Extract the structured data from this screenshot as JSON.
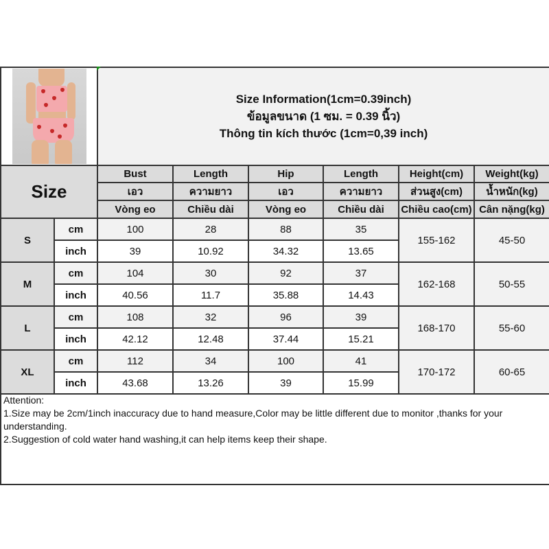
{
  "title_lines": [
    "Size Information(1cm=0.39inch)",
    "ข้อมูลขนาด (1 ซม. = 0.39 นิ้ว)",
    "Thông tin kích thước (1cm=0,39 inch)"
  ],
  "size_label": "Size",
  "headers": [
    [
      "Bust",
      "Length",
      "Hip",
      "Length",
      "Height(cm)",
      "Weight(kg)"
    ],
    [
      "เอว",
      "ความยาว",
      "เอว",
      "ความยาว",
      "ส่วนสูง(cm)",
      "น้ำหนัก(kg)"
    ],
    [
      "Vòng eo",
      "Chiều dài",
      "Vòng eo",
      "Chiều dài",
      "Chiều cao(cm)",
      "Cân nặng(kg)"
    ]
  ],
  "units": {
    "cm": "cm",
    "inch": "inch"
  },
  "sizes": [
    {
      "size": "S",
      "cm": [
        "100",
        "28",
        "88",
        "35"
      ],
      "inch": [
        "39",
        "10.92",
        "34.32",
        "13.65"
      ],
      "height": "155-162",
      "weight": "45-50"
    },
    {
      "size": "M",
      "cm": [
        "104",
        "30",
        "92",
        "37"
      ],
      "inch": [
        "40.56",
        "11.7",
        "35.88",
        "14.43"
      ],
      "height": "162-168",
      "weight": "50-55"
    },
    {
      "size": "L",
      "cm": [
        "108",
        "32",
        "96",
        "39"
      ],
      "inch": [
        "42.12",
        "12.48",
        "37.44",
        "15.21"
      ],
      "height": "168-170",
      "weight": "55-60"
    },
    {
      "size": "XL",
      "cm": [
        "112",
        "34",
        "100",
        "41"
      ],
      "inch": [
        "43.68",
        "13.26",
        "39",
        "15.99"
      ],
      "height": "170-172",
      "weight": "60-65"
    }
  ],
  "attention": [
    "Attention:",
    "1.Size may be 2cm/1inch inaccuracy due to hand measure,Color may be little different due to monitor ,thanks for your understanding.",
    "2.Suggestion of cold water hand washing,it can help items keep their shape."
  ],
  "colors": {
    "header_bg": "#dcdcdc",
    "cm_row_bg": "#f2f2f2",
    "border": "#333333",
    "garment": "#f4a9ad",
    "strawberry": "#c62828"
  }
}
